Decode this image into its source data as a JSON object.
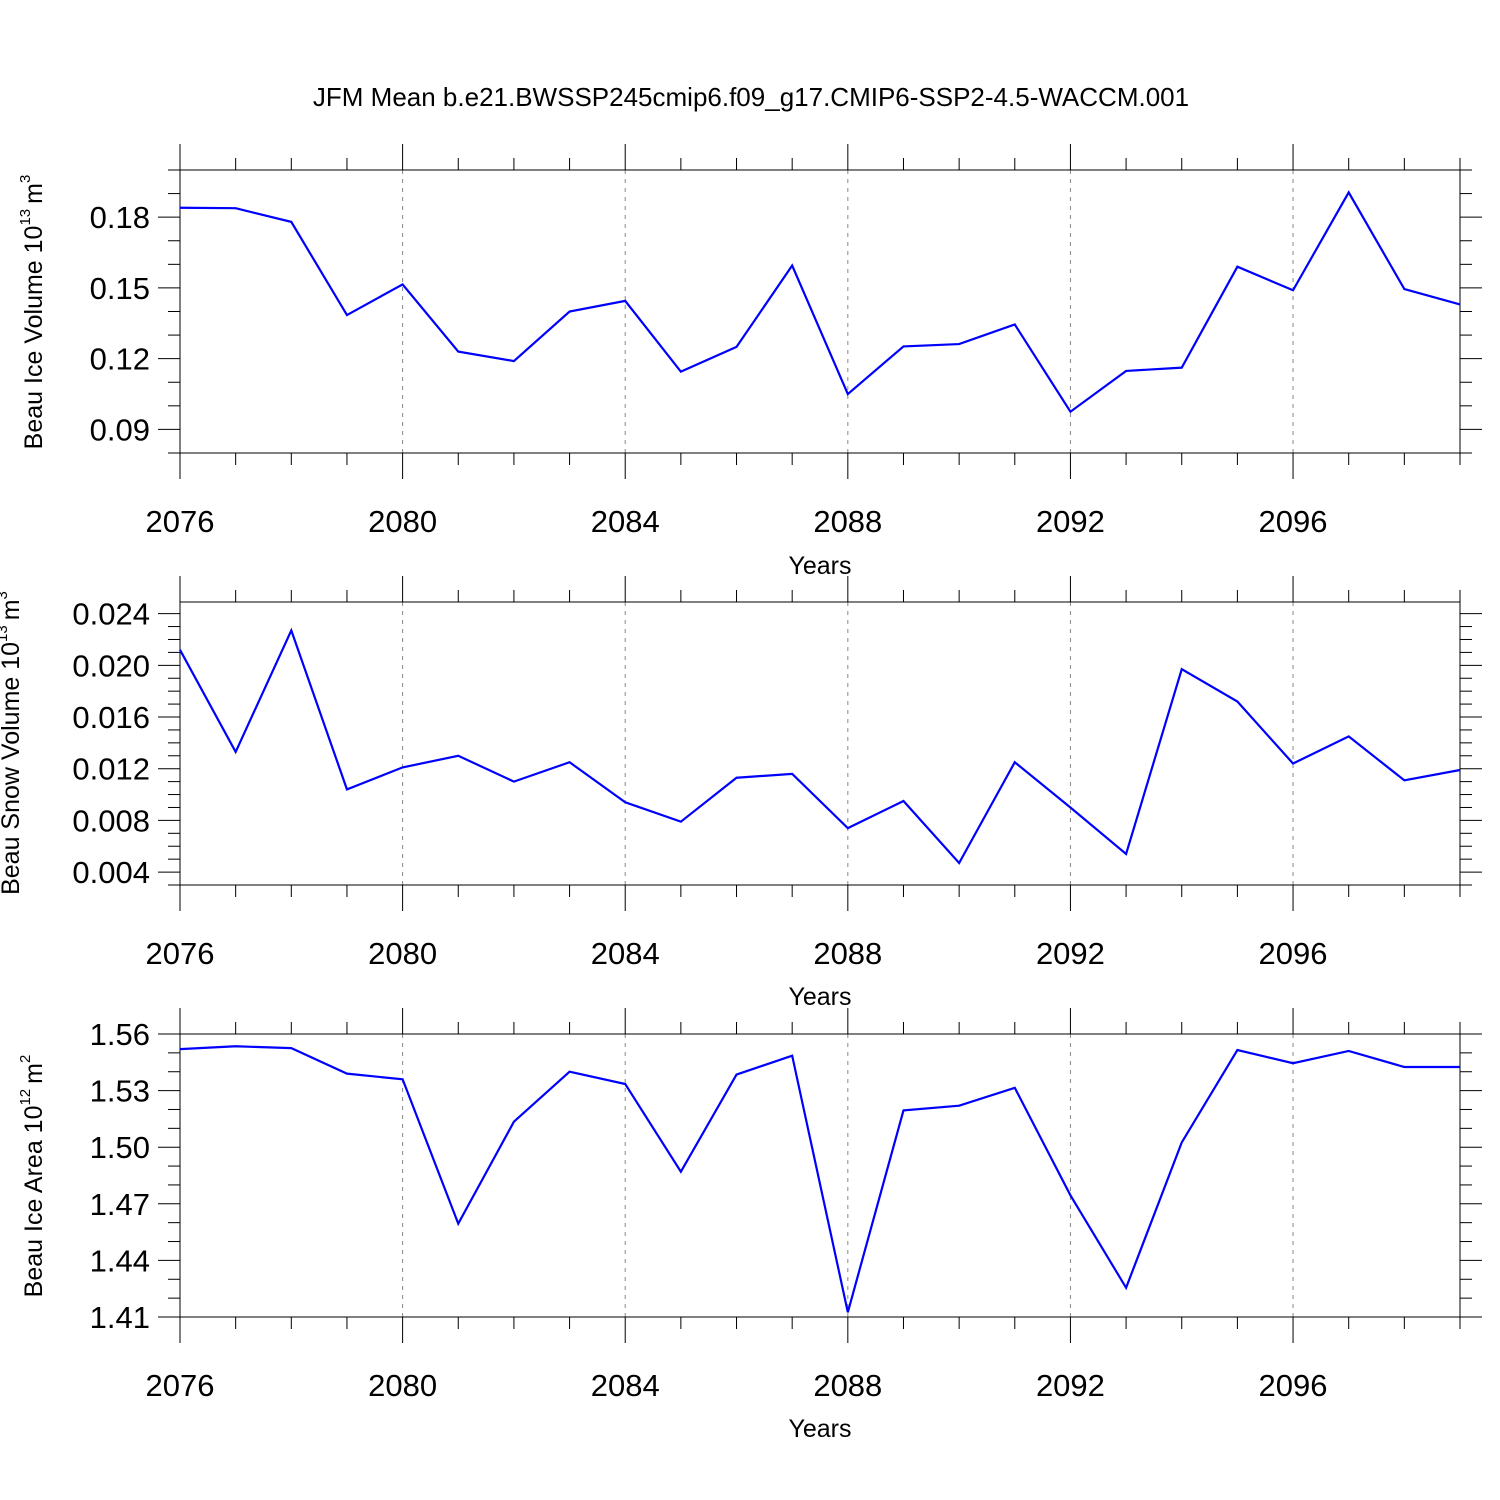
{
  "title": "JFM Mean b.e21.BWSSP245cmip6.f09_g17.CMIP6-SSP2-4.5-WACCM.001",
  "colors": {
    "series": "#0000ff",
    "axis": "#000000",
    "grid": "#888888"
  },
  "chart_data": [
    {
      "type": "line",
      "name": "ice-volume",
      "ylabel": "Beau Ice Volume 10",
      "ylabel_exponent": "13",
      "ylabel_unit": "m",
      "ylabel_unit_exponent": "3",
      "xlabel": "Years",
      "xlim": [
        2076,
        2099
      ],
      "ylim": [
        0.08,
        0.2
      ],
      "grid": true,
      "x_ticks": [
        2076,
        2080,
        2084,
        2088,
        2092,
        2096
      ],
      "x_tick_labels": [
        "2076",
        "2080",
        "2084",
        "2088",
        "2092",
        "2096"
      ],
      "y_ticks": [
        0.09,
        0.12,
        0.15,
        0.18
      ],
      "y_tick_labels": [
        "0.09",
        "0.12",
        "0.15",
        "0.18"
      ],
      "y_minor_step": 0.01,
      "x": [
        2076,
        2077,
        2078,
        2079,
        2080,
        2081,
        2082,
        2083,
        2084,
        2085,
        2086,
        2087,
        2088,
        2089,
        2090,
        2091,
        2092,
        2093,
        2094,
        2095,
        2096,
        2097,
        2098,
        2099
      ],
      "series": [
        {
          "name": "Beau Ice Volume",
          "values": [
            0.184,
            0.1838,
            0.178,
            0.1385,
            0.1515,
            0.123,
            0.119,
            0.14,
            0.1445,
            0.1145,
            0.125,
            0.1595,
            0.105,
            0.1252,
            0.1262,
            0.1345,
            0.0975,
            0.1148,
            0.1162,
            0.159,
            0.149,
            0.1905,
            0.1495,
            0.143
          ]
        }
      ]
    },
    {
      "type": "line",
      "name": "snow-volume",
      "ylabel": "Beau Snow Volume 10",
      "ylabel_exponent": "13",
      "ylabel_unit": "m",
      "ylabel_unit_exponent": "3",
      "xlabel": "Years",
      "xlim": [
        2076,
        2099
      ],
      "ylim": [
        0.003,
        0.0249
      ],
      "grid": true,
      "x_ticks": [
        2076,
        2080,
        2084,
        2088,
        2092,
        2096
      ],
      "x_tick_labels": [
        "2076",
        "2080",
        "2084",
        "2088",
        "2092",
        "2096"
      ],
      "y_ticks": [
        0.004,
        0.008,
        0.012,
        0.016,
        0.02,
        0.024
      ],
      "y_tick_labels": [
        "0.004",
        "0.008",
        "0.012",
        "0.016",
        "0.020",
        "0.024"
      ],
      "y_minor_step": 0.001,
      "x": [
        2076,
        2077,
        2078,
        2079,
        2080,
        2081,
        2082,
        2083,
        2084,
        2085,
        2086,
        2087,
        2088,
        2089,
        2090,
        2091,
        2092,
        2093,
        2094,
        2095,
        2096,
        2097,
        2098,
        2099
      ],
      "series": [
        {
          "name": "Beau Snow Volume",
          "values": [
            0.0212,
            0.0133,
            0.0227,
            0.0104,
            0.0121,
            0.013,
            0.011,
            0.0125,
            0.0094,
            0.0079,
            0.0113,
            0.0116,
            0.0074,
            0.0095,
            0.0047,
            0.0125,
            0.009,
            0.0054,
            0.0197,
            0.0172,
            0.0124,
            0.0145,
            0.0111,
            0.0119
          ]
        }
      ]
    },
    {
      "type": "line",
      "name": "ice-area",
      "ylabel": "Beau Ice Area 10",
      "ylabel_exponent": "12",
      "ylabel_unit": "m",
      "ylabel_unit_exponent": "2",
      "xlabel": "Years",
      "xlim": [
        2076,
        2099
      ],
      "ylim": [
        1.41,
        1.56
      ],
      "grid": true,
      "x_ticks": [
        2076,
        2080,
        2084,
        2088,
        2092,
        2096
      ],
      "x_tick_labels": [
        "2076",
        "2080",
        "2084",
        "2088",
        "2092",
        "2096"
      ],
      "y_ticks": [
        1.41,
        1.44,
        1.47,
        1.5,
        1.53,
        1.56
      ],
      "y_tick_labels": [
        "1.41",
        "1.44",
        "1.47",
        "1.50",
        "1.53",
        "1.56"
      ],
      "y_minor_step": 0.01,
      "x": [
        2076,
        2077,
        2078,
        2079,
        2080,
        2081,
        2082,
        2083,
        2084,
        2085,
        2086,
        2087,
        2088,
        2089,
        2090,
        2091,
        2092,
        2093,
        2094,
        2095,
        2096,
        2097,
        2098,
        2099
      ],
      "series": [
        {
          "name": "Beau Ice Area",
          "values": [
            1.552,
            1.5535,
            1.5525,
            1.539,
            1.536,
            1.4595,
            1.5135,
            1.54,
            1.5335,
            1.487,
            1.5385,
            1.5485,
            1.4125,
            1.5195,
            1.522,
            1.5315,
            1.4745,
            1.4255,
            1.5025,
            1.5515,
            1.5445,
            1.551,
            1.5425,
            1.5425
          ]
        }
      ]
    }
  ]
}
